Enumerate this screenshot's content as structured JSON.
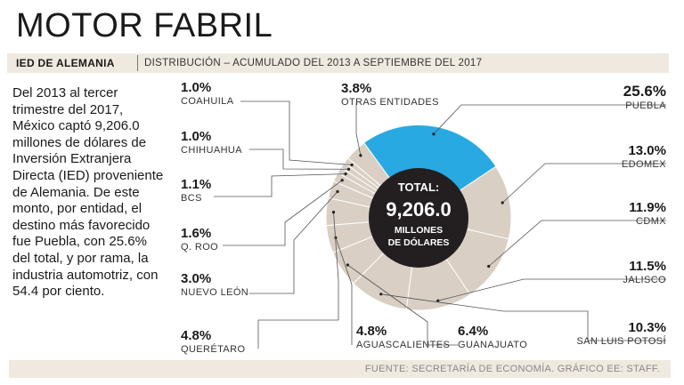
{
  "title": "MOTOR FABRIL",
  "subtitle": {
    "tag": "IED DE ALEMANIA",
    "description": "DISTRIBUCIÓN – ACUMULADO DEL 2013 A SEPTIEMBRE DEL 2017"
  },
  "body_text": "Del 2013 al tercer trimestre del 2017, México captó 9,206.0 millones de dólares de Inversión Extranjera Directa (IED) proveniente de Alemania. De este monto, por entidad, el destino más favorecido fue Puebla, con 25.6% del total, y por rama, la industria automotriz, con 54.4 por ciento.",
  "source": "FUENTE: SECRETARÍA DE ECONOMÍA. GRÁFICO EE: STAFF.",
  "colors": {
    "highlight": "#29a9e1",
    "segment": "#d9cfc4",
    "segment_border": "#ffffff",
    "center": "#231f20",
    "leader": "#555555",
    "band": "#f0e9e0"
  },
  "chart_data": {
    "type": "pie",
    "variant": "donut",
    "center": {
      "line1": "TOTAL:",
      "value": "9,206.0",
      "line2": "MILLONES",
      "line3": "DE DÓLARES"
    },
    "slices": [
      {
        "label": "PUEBLA",
        "value": 25.6,
        "display": "25.6%",
        "highlight": true
      },
      {
        "label": "EDOMEX",
        "value": 13.0,
        "display": "13.0%"
      },
      {
        "label": "CDMX",
        "value": 11.9,
        "display": "11.9%"
      },
      {
        "label": "JALISCO",
        "value": 11.5,
        "display": "11.5%"
      },
      {
        "label": "SAN LUIS POTOSÍ",
        "value": 10.3,
        "display": "10.3%"
      },
      {
        "label": "GUANAJUATO",
        "value": 6.4,
        "display": "6.4%"
      },
      {
        "label": "AGUASCALIENTES",
        "value": 4.8,
        "display": "4.8%"
      },
      {
        "label": "QUERÉTARO",
        "value": 4.8,
        "display": "4.8%"
      },
      {
        "label": "NUEVO LEÓN",
        "value": 3.0,
        "display": "3.0%"
      },
      {
        "label": "Q. ROO",
        "value": 1.6,
        "display": "1.6%"
      },
      {
        "label": "BCS",
        "value": 1.1,
        "display": "1.1%"
      },
      {
        "label": "CHIHUAHUA",
        "value": 1.0,
        "display": "1.0%"
      },
      {
        "label": "COAHUILA",
        "value": 1.0,
        "display": "1.0%"
      },
      {
        "label": "OTRAS ENTIDADES",
        "value": 3.8,
        "display": "3.8%"
      }
    ]
  }
}
